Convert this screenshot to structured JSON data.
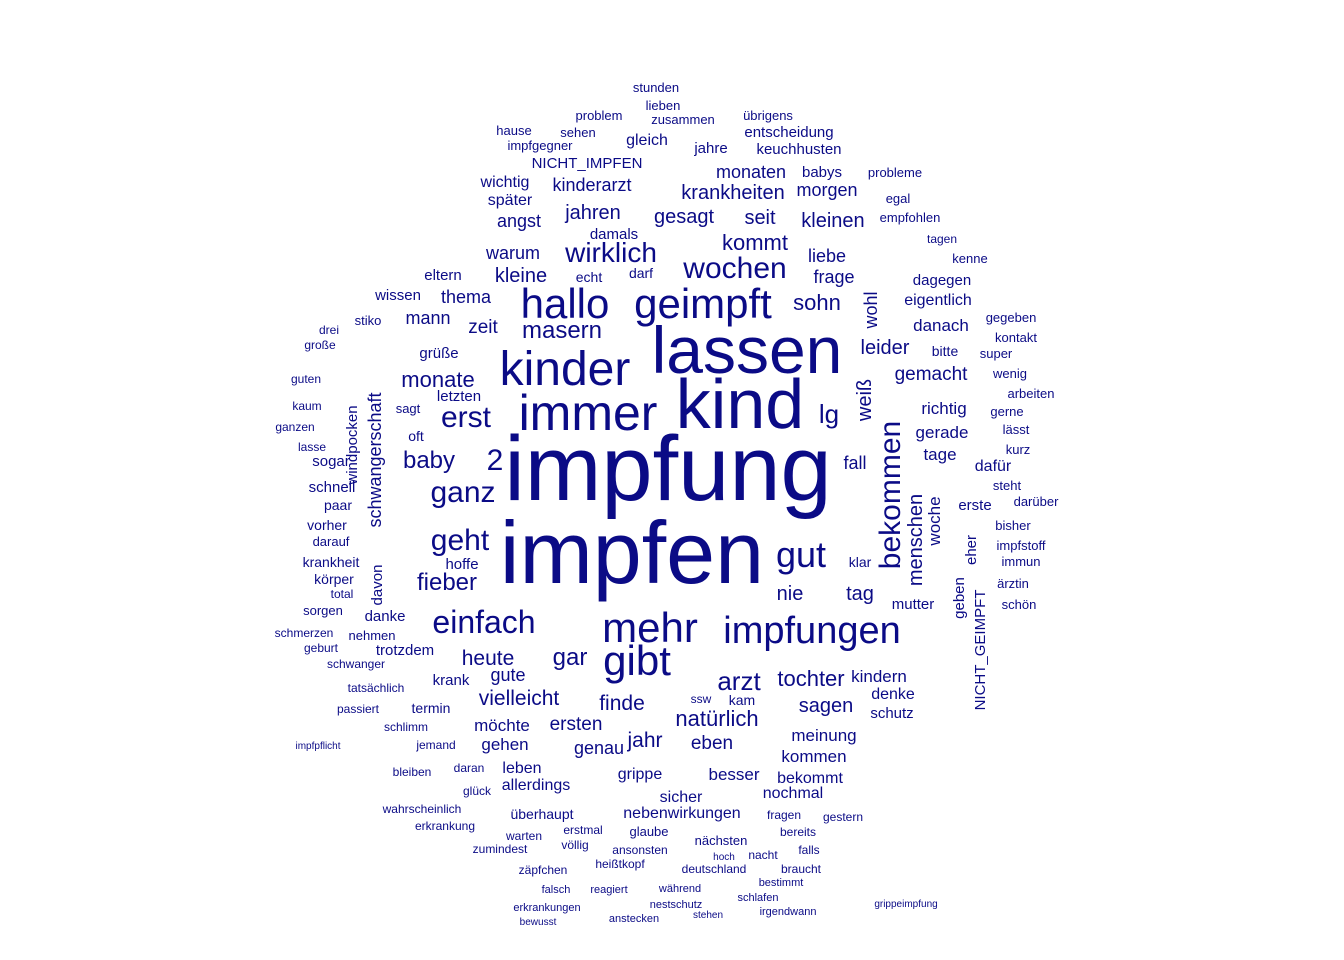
{
  "color": "#0b0b86",
  "words": [
    {
      "text": "impfung",
      "weight": 100
    },
    {
      "text": "impfen",
      "weight": 95
    },
    {
      "text": "kind",
      "weight": 70
    },
    {
      "text": "lassen",
      "weight": 68
    },
    {
      "text": "immer",
      "weight": 52
    },
    {
      "text": "kinder",
      "weight": 50
    },
    {
      "text": "hallo",
      "weight": 44
    },
    {
      "text": "geimpft",
      "weight": 44
    },
    {
      "text": "mehr",
      "weight": 44
    },
    {
      "text": "gibt",
      "weight": 43
    },
    {
      "text": "impfungen",
      "weight": 40
    },
    {
      "text": "einfach",
      "weight": 34
    },
    {
      "text": "gut",
      "weight": 35
    },
    {
      "text": "wochen",
      "weight": 32
    },
    {
      "text": "wirklich",
      "weight": 30
    },
    {
      "text": "bekommen",
      "weight": 30
    },
    {
      "text": "ganz",
      "weight": 30
    },
    {
      "text": "erst",
      "weight": 30
    },
    {
      "text": "geht",
      "weight": 30
    },
    {
      "text": "2",
      "weight": 30
    },
    {
      "text": "arzt",
      "weight": 28
    },
    {
      "text": "lg",
      "weight": 28
    },
    {
      "text": "baby",
      "weight": 26
    },
    {
      "text": "gar",
      "weight": 25
    },
    {
      "text": "fieber",
      "weight": 25
    },
    {
      "text": "masern",
      "weight": 24
    },
    {
      "text": "monate",
      "weight": 23
    },
    {
      "text": "kommt",
      "weight": 22
    },
    {
      "text": "sohn",
      "weight": 22
    },
    {
      "text": "natürlich",
      "weight": 22
    },
    {
      "text": "tochter",
      "weight": 22
    },
    {
      "text": "menschen",
      "weight": 22
    },
    {
      "text": "heute",
      "weight": 21
    },
    {
      "text": "vielleicht",
      "weight": 21
    },
    {
      "text": "finde",
      "weight": 21
    },
    {
      "text": "weiß",
      "weight": 21
    },
    {
      "text": "jahr",
      "weight": 21
    },
    {
      "text": "sagen",
      "weight": 20
    },
    {
      "text": "nie",
      "weight": 20
    },
    {
      "text": "tag",
      "weight": 20
    },
    {
      "text": "leider",
      "weight": 20
    },
    {
      "text": "kleine",
      "weight": 20
    },
    {
      "text": "jahren",
      "weight": 20
    },
    {
      "text": "gesagt",
      "weight": 20
    },
    {
      "text": "seit",
      "weight": 20
    },
    {
      "text": "kleinen",
      "weight": 20
    },
    {
      "text": "krankheiten",
      "weight": 20
    },
    {
      "text": "kinderarzt",
      "weight": 19
    },
    {
      "text": "schwangerschaft",
      "weight": 19
    },
    {
      "text": "wohl",
      "weight": 19
    },
    {
      "text": "ersten",
      "weight": 19
    },
    {
      "text": "eben",
      "weight": 19
    },
    {
      "text": "gemacht",
      "weight": 19
    },
    {
      "text": "zeit",
      "weight": 19
    },
    {
      "text": "mann",
      "weight": 18
    },
    {
      "text": "warum",
      "weight": 18
    },
    {
      "text": "angst",
      "weight": 18
    },
    {
      "text": "woche",
      "weight": 18
    },
    {
      "text": "kindern",
      "weight": 18
    },
    {
      "text": "genau",
      "weight": 18
    },
    {
      "text": "gute",
      "weight": 18
    },
    {
      "text": "fall",
      "weight": 18
    },
    {
      "text": "frage",
      "weight": 18
    },
    {
      "text": "liebe",
      "weight": 18
    },
    {
      "text": "monaten",
      "weight": 18
    },
    {
      "text": "morgen",
      "weight": 18
    },
    {
      "text": "thema",
      "weight": 18
    },
    {
      "text": "danach",
      "weight": 17
    },
    {
      "text": "richtig",
      "weight": 17
    },
    {
      "text": "gerade",
      "weight": 17
    },
    {
      "text": "tage",
      "weight": 17
    },
    {
      "text": "gehen",
      "weight": 17
    },
    {
      "text": "meinung",
      "weight": 17
    },
    {
      "text": "kommen",
      "weight": 17
    },
    {
      "text": "besser",
      "weight": 17
    },
    {
      "text": "möchte",
      "weight": 17
    },
    {
      "text": "gerne",
      "weight": 13
    },
    {
      "text": "eigentlich",
      "weight": 16
    },
    {
      "text": "denke",
      "weight": 16
    },
    {
      "text": "bekommt",
      "weight": 16
    },
    {
      "text": "nochmal",
      "weight": 16
    },
    {
      "text": "sicher",
      "weight": 16
    },
    {
      "text": "gleich",
      "weight": 16
    },
    {
      "text": "später",
      "weight": 16
    },
    {
      "text": "wichtig",
      "weight": 16
    },
    {
      "text": "allerdings",
      "weight": 16
    },
    {
      "text": "leben",
      "weight": 16
    },
    {
      "text": "dafür",
      "weight": 16
    },
    {
      "text": "erste",
      "weight": 15
    },
    {
      "text": "schutz",
      "weight": 15
    },
    {
      "text": "mutter",
      "weight": 15
    },
    {
      "text": "NICHT_GEIMPFT",
      "weight": 15
    },
    {
      "text": "eher",
      "weight": 15
    },
    {
      "text": "geben",
      "weight": 15
    },
    {
      "text": "dagegen",
      "weight": 15
    },
    {
      "text": "babys",
      "weight": 15
    },
    {
      "text": "keuchhusten",
      "weight": 15
    },
    {
      "text": "entscheidung",
      "weight": 15
    },
    {
      "text": "jahre",
      "weight": 15
    },
    {
      "text": "NICHT_IMPFEN",
      "weight": 15
    },
    {
      "text": "damals",
      "weight": 15
    },
    {
      "text": "eltern",
      "weight": 15
    },
    {
      "text": "wissen",
      "weight": 15
    },
    {
      "text": "grüße",
      "weight": 15
    },
    {
      "text": "letzten",
      "weight": 15
    },
    {
      "text": "windpocken",
      "weight": 15
    },
    {
      "text": "sogar",
      "weight": 15
    },
    {
      "text": "schnell",
      "weight": 15
    },
    {
      "text": "davon",
      "weight": 15
    },
    {
      "text": "hoffe",
      "weight": 15
    },
    {
      "text": "danke",
      "weight": 15
    },
    {
      "text": "trotzdem",
      "weight": 15
    },
    {
      "text": "krank",
      "weight": 15
    },
    {
      "text": "gestern",
      "weight": 12
    },
    {
      "text": "gripppe",
      "weight": 0
    },
    {
      "text": "grippe",
      "weight": 16
    },
    {
      "text": "nebenwirkungen",
      "weight": 16
    },
    {
      "text": "überhaupt",
      "weight": 14
    },
    {
      "text": "ssw",
      "weight": 12
    },
    {
      "text": "kam",
      "weight": 14
    },
    {
      "text": "termin",
      "weight": 14
    },
    {
      "text": "klar",
      "weight": 14
    },
    {
      "text": "echt",
      "weight": 14
    },
    {
      "text": "darf",
      "weight": 14
    },
    {
      "text": "paar",
      "weight": 14
    },
    {
      "text": "vorher",
      "weight": 14
    },
    {
      "text": "körper",
      "weight": 14
    },
    {
      "text": "krankheit",
      "weight": 14
    },
    {
      "text": "sagt",
      "weight": 13
    },
    {
      "text": "oft",
      "weight": 14
    },
    {
      "text": "bitte",
      "weight": 14
    },
    {
      "text": "kontakt",
      "weight": 13
    },
    {
      "text": "super",
      "weight": 13
    },
    {
      "text": "wenig",
      "weight": 13
    },
    {
      "text": "steht",
      "weight": 13
    },
    {
      "text": "arbeiten",
      "weight": 13
    },
    {
      "text": "bisher",
      "weight": 13
    },
    {
      "text": "impfstoff",
      "weight": 13
    },
    {
      "text": "immun",
      "weight": 13
    },
    {
      "text": "ärztin",
      "weight": 13
    },
    {
      "text": "schön",
      "weight": 13
    },
    {
      "text": "kurz",
      "weight": 13
    },
    {
      "text": "lässt",
      "weight": 13
    },
    {
      "text": "darüber",
      "weight": 13
    },
    {
      "text": "gegeben",
      "weight": 13
    },
    {
      "text": "kenne",
      "weight": 13
    },
    {
      "text": "tagen",
      "weight": 12
    },
    {
      "text": "empfohlen",
      "weight": 13
    },
    {
      "text": "egal",
      "weight": 13
    },
    {
      "text": "probleme",
      "weight": 13
    },
    {
      "text": "übrigens",
      "weight": 13
    },
    {
      "text": "lieben",
      "weight": 13
    },
    {
      "text": "zusammen",
      "weight": 13
    },
    {
      "text": "stunden",
      "weight": 13
    },
    {
      "text": "sehen",
      "weight": 13
    },
    {
      "text": "problem",
      "weight": 13
    },
    {
      "text": "hause",
      "weight": 13
    },
    {
      "text": "impfgegner",
      "weight": 13
    },
    {
      "text": "stiko",
      "weight": 13
    },
    {
      "text": "drei",
      "weight": 12
    },
    {
      "text": "große",
      "weight": 12
    },
    {
      "text": "guten",
      "weight": 12
    },
    {
      "text": "kaum",
      "weight": 12
    },
    {
      "text": "ganzen",
      "weight": 12
    },
    {
      "text": "lasse",
      "weight": 12
    },
    {
      "text": "darauf",
      "weight": 13
    },
    {
      "text": "sorgen",
      "weight": 13
    },
    {
      "text": "total",
      "weight": 12
    },
    {
      "text": "nehmen",
      "weight": 13
    },
    {
      "text": "geburt",
      "weight": 12
    },
    {
      "text": "schwanger",
      "weight": 12
    },
    {
      "text": "tatsächlich",
      "weight": 12
    },
    {
      "text": "schmerzen",
      "weight": 12
    },
    {
      "text": "passiert",
      "weight": 12
    },
    {
      "text": "schlimm",
      "weight": 12
    },
    {
      "text": "jemand",
      "weight": 12
    },
    {
      "text": "daran",
      "weight": 12
    },
    {
      "text": "bleiben",
      "weight": 12
    },
    {
      "text": "glück",
      "weight": 12
    },
    {
      "text": "wahrscheinlich",
      "weight": 12
    },
    {
      "text": "erkrankung",
      "weight": 12
    },
    {
      "text": "warten",
      "weight": 12
    },
    {
      "text": "zumindest",
      "weight": 12
    },
    {
      "text": "völlig",
      "weight": 12
    },
    {
      "text": "erstmal",
      "weight": 12
    },
    {
      "text": "glaube",
      "weight": 13
    },
    {
      "text": "ansonsten",
      "weight": 12
    },
    {
      "text": "nächsten",
      "weight": 13
    },
    {
      "text": "bereits",
      "weight": 12
    },
    {
      "text": "fragen",
      "weight": 12
    },
    {
      "text": "heißtkopf",
      "weight": 0
    },
    {
      "text": "heißtkopf",
      "weight": 12
    },
    {
      "text": "falls",
      "weight": 12
    },
    {
      "text": "nacht",
      "weight": 12
    },
    {
      "text": "deutschland",
      "weight": 12
    },
    {
      "text": "bestimmt",
      "weight": 11
    },
    {
      "text": "braucht",
      "weight": 12
    },
    {
      "text": "zäpfchen",
      "weight": 12
    },
    {
      "text": "falsch",
      "weight": 11
    },
    {
      "text": "reagiert",
      "weight": 11
    },
    {
      "text": "während",
      "weight": 11
    },
    {
      "text": "schlafen",
      "weight": 11
    },
    {
      "text": "nestschutz",
      "weight": 11
    },
    {
      "text": "irgendwann",
      "weight": 11
    },
    {
      "text": "anstecken",
      "weight": 11
    },
    {
      "text": "erkrankungen",
      "weight": 11
    },
    {
      "text": "bewusst",
      "weight": 10
    },
    {
      "text": "stehen",
      "weight": 10
    },
    {
      "text": "hochnacht",
      "weight": 0
    },
    {
      "text": "hoch",
      "weight": 10
    },
    {
      "text": "impfpflicht",
      "weight": 10
    },
    {
      "text": "grippeimpfung",
      "weight": 10
    }
  ]
}
